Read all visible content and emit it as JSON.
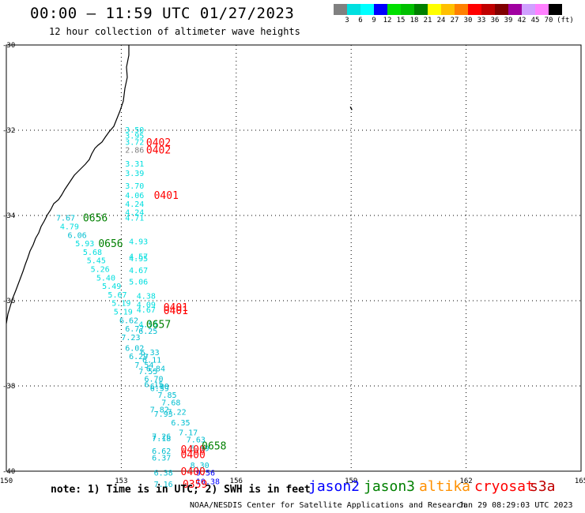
{
  "header": {
    "title": "00:00 – 11:59 UTC 01/27/2023",
    "subtitle": "12 hour collection of altimeter wave heights"
  },
  "colorbar": {
    "colors": [
      "#808080",
      "#00e0e0",
      "#00ffff",
      "#0000ff",
      "#00e000",
      "#00c000",
      "#008000",
      "#ffff00",
      "#ffc000",
      "#ff8000",
      "#ff0000",
      "#c00000",
      "#800000",
      "#a000a0",
      "#d0a0ff",
      "#ff80ff",
      "#000000"
    ],
    "labels": [
      "3",
      "6",
      "9",
      "12",
      "15",
      "18",
      "21",
      "24",
      "27",
      "30",
      "33",
      "36",
      "39",
      "42",
      "45",
      "70",
      "(ft)"
    ]
  },
  "map": {
    "lon_range": [
      150,
      165
    ],
    "lat_range": [
      -30,
      -40
    ],
    "lon_ticks": [
      "150",
      "153",
      "156",
      "159",
      "162",
      "165"
    ],
    "lat_ticks": [
      "-30",
      "-32",
      "-34",
      "-36",
      "-38",
      "-40"
    ]
  },
  "observations": [
    {
      "lon": 153.1,
      "lat": -31.98,
      "v": "3.50",
      "c": "#00dede"
    },
    {
      "lon": 153.1,
      "lat": -32.12,
      "v": "3.95",
      "c": "#00dede"
    },
    {
      "lon": 153.1,
      "lat": -32.27,
      "v": "3.72",
      "c": "#00dede"
    },
    {
      "lon": 153.1,
      "lat": -32.45,
      "v": "2.86",
      "c": "#808080"
    },
    {
      "lon": 153.1,
      "lat": -32.78,
      "v": "3.31",
      "c": "#00dede"
    },
    {
      "lon": 153.1,
      "lat": -33.0,
      "v": "3.39",
      "c": "#00dede"
    },
    {
      "lon": 153.1,
      "lat": -33.3,
      "v": "3.70",
      "c": "#00dede"
    },
    {
      "lon": 153.1,
      "lat": -33.52,
      "v": "4.06",
      "c": "#00dede"
    },
    {
      "lon": 153.1,
      "lat": -33.72,
      "v": "4.24",
      "c": "#00dede"
    },
    {
      "lon": 153.1,
      "lat": -33.92,
      "v": "4.24",
      "c": "#00dede"
    },
    {
      "lon": 153.1,
      "lat": -34.05,
      "v": "4.71",
      "c": "#00dede"
    },
    {
      "lon": 151.3,
      "lat": -34.05,
      "v": "7.67",
      "c": "#00bed0"
    },
    {
      "lon": 151.4,
      "lat": -34.25,
      "v": "4.79",
      "c": "#00dede"
    },
    {
      "lon": 151.6,
      "lat": -34.45,
      "v": "6.06",
      "c": "#00bed0"
    },
    {
      "lon": 151.8,
      "lat": -34.65,
      "v": "5.93",
      "c": "#00dede"
    },
    {
      "lon": 152.0,
      "lat": -34.85,
      "v": "5.68",
      "c": "#00dede"
    },
    {
      "lon": 152.1,
      "lat": -35.05,
      "v": "5.45",
      "c": "#00dede"
    },
    {
      "lon": 152.2,
      "lat": -35.25,
      "v": "5.26",
      "c": "#00dede"
    },
    {
      "lon": 152.35,
      "lat": -35.45,
      "v": "5.40",
      "c": "#00dede"
    },
    {
      "lon": 152.5,
      "lat": -35.65,
      "v": "5.49",
      "c": "#00dede"
    },
    {
      "lon": 152.65,
      "lat": -35.85,
      "v": "5.67",
      "c": "#00dede"
    },
    {
      "lon": 152.75,
      "lat": -36.05,
      "v": "5.19",
      "c": "#00dede"
    },
    {
      "lon": 152.8,
      "lat": -36.25,
      "v": "5.19",
      "c": "#00dede"
    },
    {
      "lon": 152.95,
      "lat": -36.45,
      "v": "6.62",
      "c": "#00bed0"
    },
    {
      "lon": 153.2,
      "lat": -34.6,
      "v": "4.93",
      "c": "#00dede"
    },
    {
      "lon": 153.2,
      "lat": -34.95,
      "v": "4.57",
      "c": "#00dede"
    },
    {
      "lon": 153.2,
      "lat": -35.0,
      "v": "4.95",
      "c": "#00dede"
    },
    {
      "lon": 153.2,
      "lat": -35.28,
      "v": "4.67",
      "c": "#00dede"
    },
    {
      "lon": 153.2,
      "lat": -35.55,
      "v": "5.06",
      "c": "#00dede"
    },
    {
      "lon": 153.4,
      "lat": -35.88,
      "v": "4.38",
      "c": "#00dede"
    },
    {
      "lon": 153.4,
      "lat": -36.08,
      "v": "4.09",
      "c": "#00dede"
    },
    {
      "lon": 153.4,
      "lat": -36.2,
      "v": "4.67",
      "c": "#00dede"
    },
    {
      "lon": 153.1,
      "lat": -36.65,
      "v": "6.77",
      "c": "#00bed0"
    },
    {
      "lon": 153.0,
      "lat": -36.85,
      "v": "7.23",
      "c": "#00bed0"
    },
    {
      "lon": 153.45,
      "lat": -36.55,
      "v": "4.55",
      "c": "#00dede"
    },
    {
      "lon": 153.45,
      "lat": -36.7,
      "v": "6.25",
      "c": "#00bed0"
    },
    {
      "lon": 153.1,
      "lat": -37.1,
      "v": "6.02",
      "c": "#00bed0"
    },
    {
      "lon": 153.5,
      "lat": -37.2,
      "v": "6.33",
      "c": "#00bed0"
    },
    {
      "lon": 153.2,
      "lat": -37.3,
      "v": "6.29",
      "c": "#00bed0"
    },
    {
      "lon": 153.55,
      "lat": -37.38,
      "v": "6.11",
      "c": "#00bed0"
    },
    {
      "lon": 153.35,
      "lat": -37.5,
      "v": "7.54",
      "c": "#00bed0"
    },
    {
      "lon": 153.65,
      "lat": -37.58,
      "v": "6.84",
      "c": "#00bed0"
    },
    {
      "lon": 153.45,
      "lat": -37.65,
      "v": "7.55",
      "c": "#00bed0"
    },
    {
      "lon": 153.6,
      "lat": -37.82,
      "v": "6.70",
      "c": "#00bed0"
    },
    {
      "lon": 153.6,
      "lat": -37.95,
      "v": "6.15",
      "c": "#00bed0"
    },
    {
      "lon": 153.75,
      "lat": -38.0,
      "v": "6.90",
      "c": "#00bed0"
    },
    {
      "lon": 153.75,
      "lat": -38.05,
      "v": "6.59",
      "c": "#00bed0"
    },
    {
      "lon": 153.95,
      "lat": -38.2,
      "v": "7.85",
      "c": "#00bed0"
    },
    {
      "lon": 154.05,
      "lat": -38.38,
      "v": "7.68",
      "c": "#00bed0"
    },
    {
      "lon": 153.75,
      "lat": -38.55,
      "v": "7.82",
      "c": "#00bed0"
    },
    {
      "lon": 154.2,
      "lat": -38.6,
      "v": "7.22",
      "c": "#00bed0"
    },
    {
      "lon": 153.85,
      "lat": -38.65,
      "v": "7.93",
      "c": "#00bed0"
    },
    {
      "lon": 154.3,
      "lat": -38.85,
      "v": "6.35",
      "c": "#00bed0"
    },
    {
      "lon": 154.5,
      "lat": -39.08,
      "v": "7.17",
      "c": "#00bed0"
    },
    {
      "lon": 153.8,
      "lat": -39.18,
      "v": "7.26",
      "c": "#00bed0"
    },
    {
      "lon": 153.8,
      "lat": -39.22,
      "v": "7.18",
      "c": "#00bed0"
    },
    {
      "lon": 154.7,
      "lat": -39.25,
      "v": "7.63",
      "c": "#00bed0"
    },
    {
      "lon": 154.8,
      "lat": -39.45,
      "v": "6.59",
      "c": "#00bed0"
    },
    {
      "lon": 153.8,
      "lat": -39.52,
      "v": "6.62",
      "c": "#00bed0"
    },
    {
      "lon": 153.8,
      "lat": -39.68,
      "v": "6.37",
      "c": "#00bed0"
    },
    {
      "lon": 154.8,
      "lat": -39.85,
      "v": "8.30",
      "c": "#00bed0"
    },
    {
      "lon": 153.85,
      "lat": -40.03,
      "v": "6.38",
      "c": "#00bed0"
    },
    {
      "lon": 154.95,
      "lat": -40.03,
      "v": "9.56",
      "c": "#0000ff"
    },
    {
      "lon": 154.95,
      "lat": -40.23,
      "v": "10.38",
      "c": "#0000ff"
    },
    {
      "lon": 153.85,
      "lat": -40.3,
      "v": "7.16",
      "c": "#00bed0"
    }
  ],
  "pass_labels": [
    {
      "lon": 153.65,
      "lat": -32.28,
      "t": "0402",
      "c": "#ff0000"
    },
    {
      "lon": 153.65,
      "lat": -32.45,
      "t": "0402",
      "c": "#ff0000"
    },
    {
      "lon": 153.85,
      "lat": -33.52,
      "t": "0401",
      "c": "#ff0000"
    },
    {
      "lon": 152.0,
      "lat": -34.05,
      "t": "0656",
      "c": "#008000"
    },
    {
      "lon": 152.4,
      "lat": -34.65,
      "t": "0656",
      "c": "#008000"
    },
    {
      "lon": 154.1,
      "lat": -36.15,
      "t": "0401",
      "c": "#ff0000"
    },
    {
      "lon": 154.1,
      "lat": -36.22,
      "t": "0401",
      "c": "#ff0000"
    },
    {
      "lon": 153.65,
      "lat": -36.55,
      "t": "0657",
      "c": "#008000"
    },
    {
      "lon": 154.55,
      "lat": -39.48,
      "t": "0400",
      "c": "#ff0000"
    },
    {
      "lon": 154.55,
      "lat": -39.6,
      "t": "0400",
      "c": "#ff0000"
    },
    {
      "lon": 155.1,
      "lat": -39.4,
      "t": "0658",
      "c": "#008000"
    },
    {
      "lon": 154.55,
      "lat": -40.0,
      "t": "0400",
      "c": "#ff0000"
    },
    {
      "lon": 154.6,
      "lat": -40.3,
      "t": "0359",
      "c": "#ff0000"
    }
  ],
  "isolated_marks": [
    {
      "lon": 159.0,
      "lat": -31.45
    }
  ],
  "footer": {
    "note": "note: 1) Time is in UTC; 2) SWH is in feet",
    "satellites": [
      {
        "name": "jason2",
        "color": "#0000ff"
      },
      {
        "name": "jason3",
        "color": "#008000"
      },
      {
        "name": "altika",
        "color": "#ff9000"
      },
      {
        "name": "cryosat",
        "color": "#ff0000"
      },
      {
        "name": "s3a",
        "color": "#c00000"
      }
    ],
    "credit": "NOAA/NESDIS Center for Satellite Applications and Research",
    "timestamp": "Jan 29 08:29:03 UTC 2023"
  }
}
